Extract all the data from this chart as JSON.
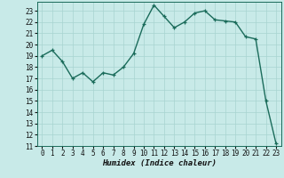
{
  "xlabel": "Humidex (Indice chaleur)",
  "background_color": "#c8eae8",
  "grid_color": "#a8d4d0",
  "line_color": "#1a6b5a",
  "marker_color": "#1a6b5a",
  "x": [
    0,
    1,
    2,
    3,
    4,
    5,
    6,
    7,
    8,
    9,
    10,
    11,
    12,
    13,
    14,
    15,
    16,
    17,
    18,
    19,
    20,
    21,
    22,
    23
  ],
  "y": [
    19.0,
    19.5,
    18.5,
    17.0,
    17.5,
    16.7,
    17.5,
    17.3,
    18.0,
    19.2,
    21.8,
    23.5,
    22.5,
    21.5,
    22.0,
    22.8,
    23.0,
    22.2,
    22.1,
    22.0,
    20.7,
    20.5,
    15.0,
    11.2
  ],
  "ylim": [
    11,
    23.8
  ],
  "xlim": [
    -0.5,
    23.5
  ],
  "yticks": [
    11,
    12,
    13,
    14,
    15,
    16,
    17,
    18,
    19,
    20,
    21,
    22,
    23
  ],
  "xticks": [
    0,
    1,
    2,
    3,
    4,
    5,
    6,
    7,
    8,
    9,
    10,
    11,
    12,
    13,
    14,
    15,
    16,
    17,
    18,
    19,
    20,
    21,
    22,
    23
  ],
  "tick_fontsize": 5.5,
  "xlabel_fontsize": 6.5,
  "linewidth": 1.0,
  "markersize": 3.5
}
